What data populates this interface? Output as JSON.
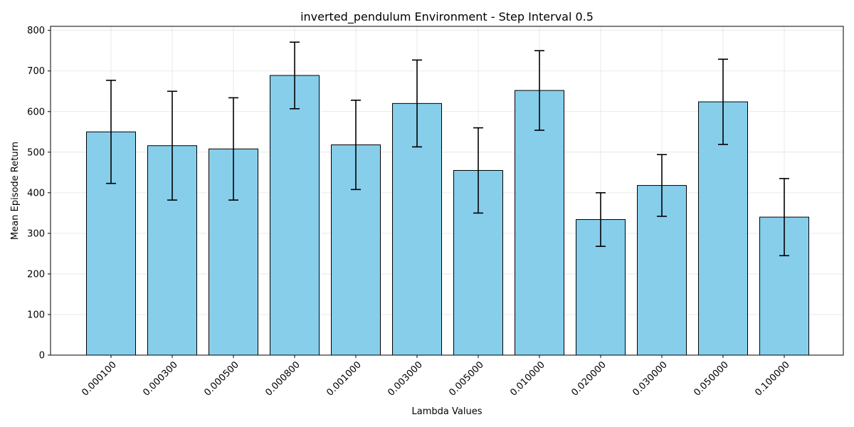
{
  "chart_data": {
    "type": "bar",
    "title": "inverted_pendulum Environment - Step Interval 0.5",
    "xlabel": "Lambda Values",
    "ylabel": "Mean Episode Return",
    "categories": [
      "0.000100",
      "0.000300",
      "0.000500",
      "0.000800",
      "0.001000",
      "0.003000",
      "0.005000",
      "0.010000",
      "0.020000",
      "0.030000",
      "0.050000",
      "0.100000"
    ],
    "values": [
      550,
      516,
      508,
      689,
      518,
      620,
      455,
      652,
      334,
      418,
      624,
      340
    ],
    "errors": [
      127,
      134,
      126,
      82,
      110,
      107,
      105,
      98,
      66,
      76,
      105,
      95
    ],
    "ylim": [
      0,
      810
    ],
    "yticks": [
      0,
      100,
      200,
      300,
      400,
      500,
      600,
      700,
      800
    ],
    "grid": true,
    "bar_color": "#87ceeb",
    "edge_color": "#000000"
  }
}
